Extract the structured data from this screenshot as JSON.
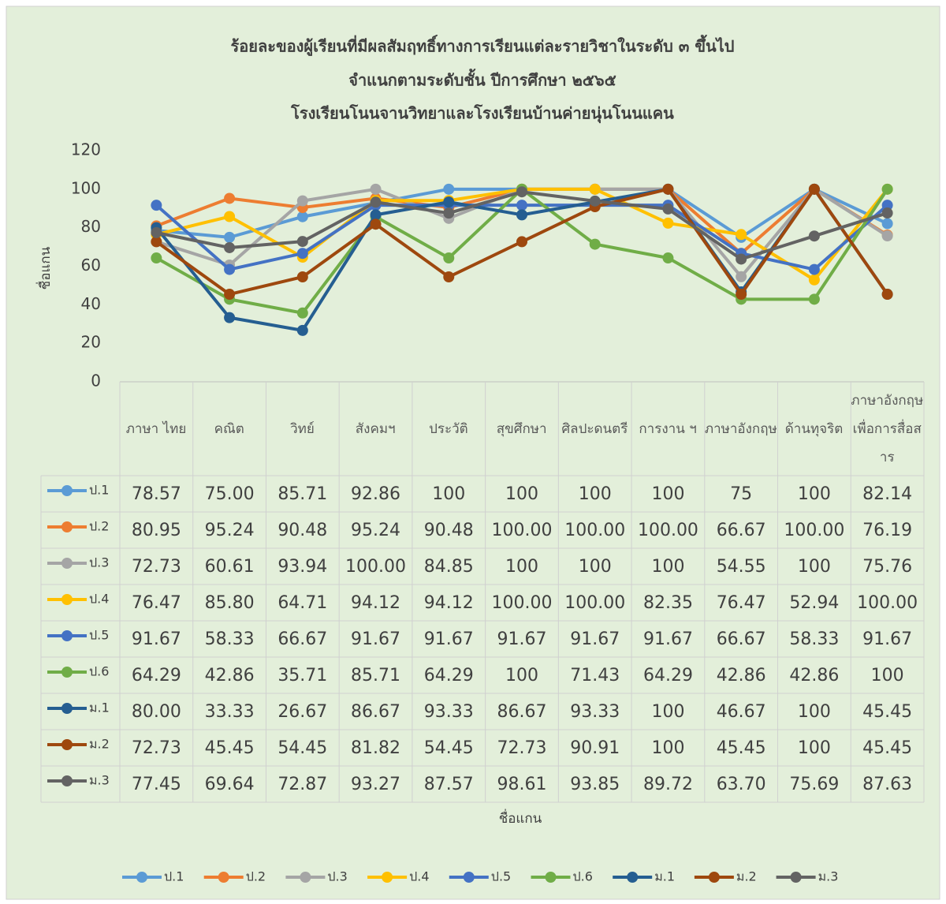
{
  "chart_data": {
    "type": "line",
    "title": [
      "ร้อยละของผู้เรียนที่มีผลสัมฤทธิ์ทางการเรียนแต่ละรายวิชาในระดับ ๓ ขึ้นไป",
      "จำแนกตามระดับชั้น  ปีการศึกษา ๒๕๖๕",
      "โรงเรียนโนนจานวิทยาและโรงเรียนบ้านค่ายนุ่นโนนแคน"
    ],
    "x_label": "ชื่อแกน",
    "y_label": "ชื่อแกน",
    "categories": [
      "ภาษา ไทย",
      "คณิต",
      "วิทย์",
      "สังคมฯ",
      "ประวัติ",
      "สุขศึกษา",
      "ศิลปะดนตรี",
      "การงาน ฯ",
      "ภาษาอังกฤษ",
      "ด้านทุจริต",
      "ภาษาอังกฤษเพื่อการสื่อสาร"
    ],
    "ylim": [
      0,
      120
    ],
    "yticks": [
      0,
      20,
      40,
      60,
      80,
      100,
      120
    ],
    "grid": false,
    "legend": "bottom",
    "series": [
      {
        "name": "ป.1",
        "color": "#5b9bd5",
        "values": [
          78.57,
          75,
          85.71,
          92.86,
          100,
          100,
          100,
          100,
          75,
          100,
          82.14
        ],
        "value_labels": [
          "78.57",
          "75.00",
          "85.71",
          "92.86",
          "100",
          "100",
          "100",
          "100",
          "75",
          "100",
          "82.14"
        ]
      },
      {
        "name": "ป.2",
        "color": "#ed7d31",
        "values": [
          80.95,
          95.24,
          90.48,
          95.24,
          90.48,
          100,
          100,
          100,
          66.67,
          100,
          76.19
        ],
        "value_labels": [
          "80.95",
          "95.24",
          "90.48",
          "95.24",
          "90.48",
          "100.00",
          "100.00",
          "100.00",
          "66.67",
          "100.00",
          "76.19"
        ]
      },
      {
        "name": "ป.3",
        "color": "#a5a5a5",
        "values": [
          72.73,
          60.61,
          93.94,
          100,
          84.85,
          100,
          100,
          100,
          54.55,
          100,
          75.76
        ],
        "value_labels": [
          "72.73",
          "60.61",
          "93.94",
          "100.00",
          "84.85",
          "100",
          "100",
          "100",
          "54.55",
          "100",
          "75.76"
        ]
      },
      {
        "name": "ป.4",
        "color": "#ffc000",
        "values": [
          76.47,
          85.8,
          64.71,
          94.12,
          94.12,
          100,
          100,
          82.35,
          76.47,
          52.94,
          100
        ],
        "value_labels": [
          "76.47",
          "85.80",
          "64.71",
          "94.12",
          "94.12",
          "100.00",
          "100.00",
          "82.35",
          "76.47",
          "52.94",
          "100.00"
        ]
      },
      {
        "name": "ป.5",
        "color": "#4472c4",
        "values": [
          91.67,
          58.33,
          66.67,
          91.67,
          91.67,
          91.67,
          91.67,
          91.67,
          66.67,
          58.33,
          91.67
        ],
        "value_labels": [
          "91.67",
          "58.33",
          "66.67",
          "91.67",
          "91.67",
          "91.67",
          "91.67",
          "91.67",
          "66.67",
          "58.33",
          "91.67"
        ]
      },
      {
        "name": "ป.6",
        "color": "#70ad47",
        "values": [
          64.29,
          42.86,
          35.71,
          85.71,
          64.29,
          100,
          71.43,
          64.29,
          42.86,
          42.86,
          100
        ],
        "value_labels": [
          "64.29",
          "42.86",
          "35.71",
          "85.71",
          "64.29",
          "100",
          "71.43",
          "64.29",
          "42.86",
          "42.86",
          "100"
        ]
      },
      {
        "name": "ม.1",
        "color": "#255e91",
        "values": [
          80,
          33.33,
          26.67,
          86.67,
          93.33,
          86.67,
          93.33,
          100,
          46.67,
          100,
          45.45
        ],
        "value_labels": [
          "80.00",
          "33.33",
          "26.67",
          "86.67",
          "93.33",
          "86.67",
          "93.33",
          "100",
          "46.67",
          "100",
          "45.45"
        ]
      },
      {
        "name": "ม.2",
        "color": "#9e480e",
        "values": [
          72.73,
          45.45,
          54.45,
          81.82,
          54.45,
          72.73,
          90.91,
          100,
          45.45,
          100,
          45.45
        ],
        "value_labels": [
          "72.73",
          "45.45",
          "54.45",
          "81.82",
          "54.45",
          "72.73",
          "90.91",
          "100",
          "45.45",
          "100",
          "45.45"
        ]
      },
      {
        "name": "ม.3",
        "color": "#636363",
        "values": [
          77.45,
          69.64,
          72.87,
          93.27,
          87.57,
          98.61,
          93.85,
          89.72,
          63.7,
          75.69,
          87.63
        ],
        "value_labels": [
          "77.45",
          "69.64",
          "72.87",
          "93.27",
          "87.57",
          "98.61",
          "93.85",
          "89.72",
          "63.70",
          "75.69",
          "87.63"
        ]
      }
    ]
  }
}
